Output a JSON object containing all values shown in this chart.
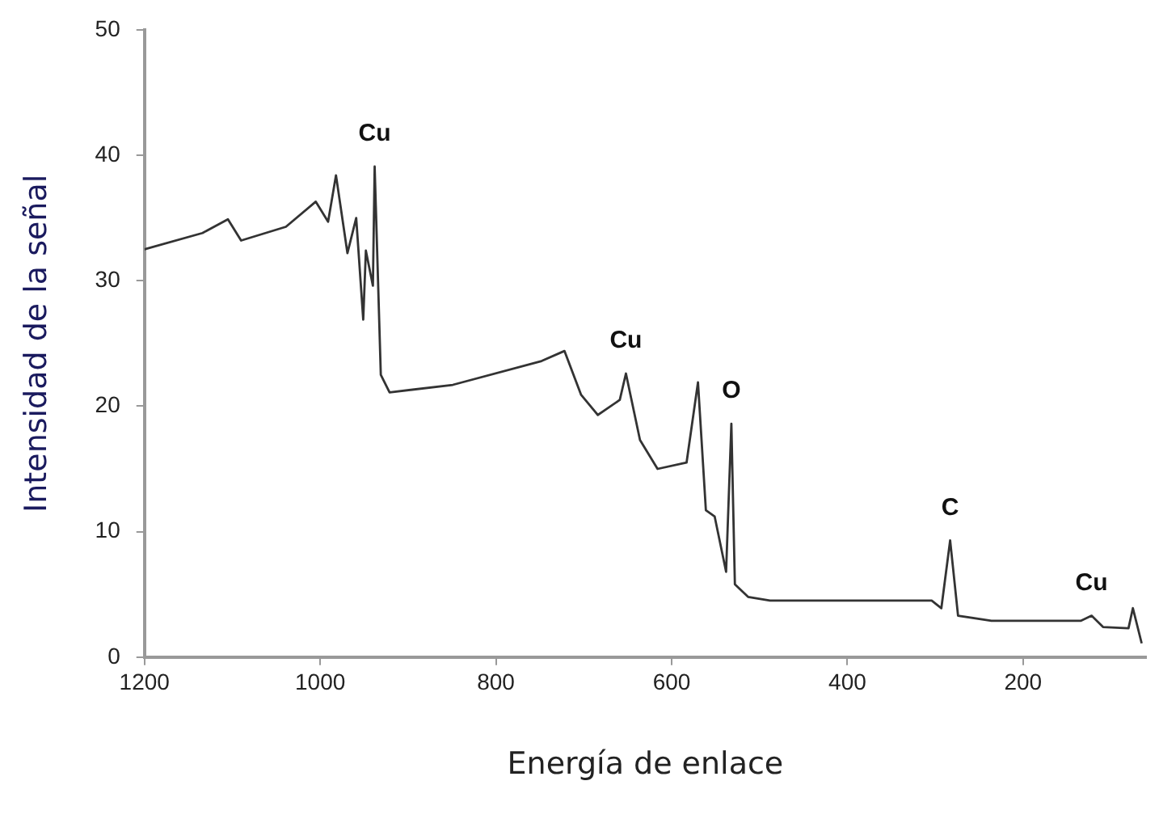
{
  "chart_data": {
    "type": "line",
    "xlabel": "Energía de enlace",
    "ylabel": "Intensidad de la señal",
    "x": [
      1200,
      1134,
      1105,
      1090,
      1039,
      1005,
      991,
      982,
      969,
      959,
      951,
      948,
      940,
      938,
      931,
      921,
      849,
      748,
      722,
      703,
      684,
      659,
      652,
      636,
      616,
      583,
      570,
      561,
      551,
      538,
      532,
      528,
      513,
      488,
      304,
      293,
      283,
      274,
      236,
      134,
      122,
      109,
      80,
      75,
      65
    ],
    "series": [
      {
        "color": "#333333",
        "values": [
          32.5,
          33.8,
          34.9,
          33.2,
          34.3,
          36.3,
          34.7,
          38.4,
          32.2,
          35.0,
          26.9,
          32.4,
          29.6,
          39.1,
          22.5,
          21.1,
          21.7,
          23.6,
          24.4,
          20.9,
          19.3,
          20.5,
          22.6,
          17.3,
          15.0,
          15.5,
          21.9,
          11.7,
          11.2,
          6.8,
          18.6,
          5.8,
          4.8,
          4.5,
          4.5,
          3.9,
          9.3,
          3.3,
          2.9,
          2.9,
          3.3,
          2.4,
          2.3,
          3.9,
          1.1
        ]
      }
    ],
    "xlim": [
      1200,
      60
    ],
    "xticks": [
      1200,
      1000,
      800,
      600,
      400,
      200
    ],
    "ylim": [
      0,
      50
    ],
    "yticks": [
      0,
      10,
      20,
      30,
      40,
      50
    ],
    "grid": false,
    "legend": false,
    "marker": "none",
    "line_style": "solid",
    "annotations": [
      {
        "text": "Cu",
        "x": 938,
        "y": 39.1
      },
      {
        "text": "Cu",
        "x": 652,
        "y": 22.6
      },
      {
        "text": "O",
        "x": 532,
        "y": 18.6
      },
      {
        "text": "C",
        "x": 283,
        "y": 9.3
      },
      {
        "text": "Cu",
        "x": 122,
        "y": 3.3
      }
    ]
  }
}
